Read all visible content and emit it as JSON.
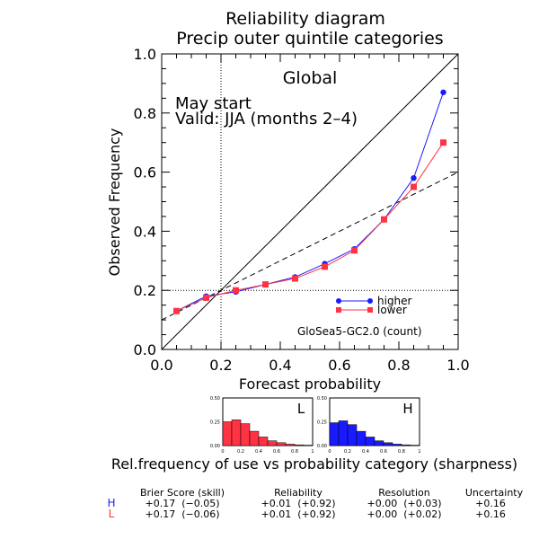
{
  "title": "Reliability diagram",
  "subtitle": "Precip outer quintile categories",
  "region": "Global",
  "start": "May start",
  "valid": "Valid: JJA (months 2–4)",
  "model": "GloSea5-GC2.0 (count)",
  "sharpness_caption": "Rel.frequency of use vs probability category (sharpness)",
  "colors": {
    "higher": "#1a1aff",
    "lower": "#ff3344"
  },
  "chart_data": [
    {
      "type": "line",
      "xlabel": "Forecast probability",
      "ylabel": "Observed Frequency",
      "xlim": [
        0,
        1
      ],
      "ylim": [
        0,
        1
      ],
      "xticks": [
        "0.0",
        "0.2",
        "0.4",
        "0.6",
        "0.8",
        "1.0"
      ],
      "yticks": [
        "0.0",
        "0.2",
        "0.4",
        "0.6",
        "0.8",
        "1.0"
      ],
      "climatology": 0.2,
      "no_skill_line": [
        [
          0,
          0.1
        ],
        [
          1,
          0.6
        ]
      ],
      "legend_position": "lower-right",
      "series": [
        {
          "name": "higher",
          "color": "#1a1aff",
          "marker": "circle",
          "x": [
            0.05,
            0.15,
            0.25,
            0.35,
            0.45,
            0.55,
            0.65,
            0.75,
            0.85,
            0.95
          ],
          "y": [
            0.13,
            0.18,
            0.195,
            0.22,
            0.245,
            0.29,
            0.34,
            0.44,
            0.58,
            0.87
          ]
        },
        {
          "name": "lower",
          "color": "#ff3344",
          "marker": "square",
          "x": [
            0.05,
            0.15,
            0.25,
            0.35,
            0.45,
            0.55,
            0.65,
            0.75,
            0.85,
            0.95
          ],
          "y": [
            0.13,
            0.175,
            0.2,
            0.22,
            0.24,
            0.28,
            0.335,
            0.44,
            0.55,
            0.7
          ]
        }
      ]
    },
    {
      "type": "bar",
      "label": "L",
      "color": "#ff3344",
      "ylim": [
        0,
        0.5
      ],
      "yticks": [
        "0.00",
        "0.25",
        "0.50"
      ],
      "xticks": [
        "0",
        "0.2",
        "0.4",
        "0.6",
        "0.8",
        "1"
      ],
      "values": [
        0.25,
        0.27,
        0.23,
        0.15,
        0.09,
        0.05,
        0.03,
        0.015,
        0.008,
        0.004
      ]
    },
    {
      "type": "bar",
      "label": "H",
      "color": "#1a1aff",
      "ylim": [
        0,
        0.5
      ],
      "yticks": [
        "0.00",
        "0.25",
        "0.50"
      ],
      "xticks": [
        "0",
        "0.2",
        "0.4",
        "0.6",
        "0.8",
        "1"
      ],
      "values": [
        0.24,
        0.26,
        0.22,
        0.15,
        0.09,
        0.05,
        0.03,
        0.015,
        0.008,
        0.004
      ]
    }
  ],
  "scores": {
    "headers": [
      "Brier Score (skill)",
      "Reliability",
      "Resolution",
      "Uncertainty"
    ],
    "rows": [
      {
        "label": "H",
        "color": "#1a1aff",
        "cells": [
          "+0.17  (−0.05)",
          "+0.01  (+0.92)",
          "+0.00  (+0.03)",
          "+0.16"
        ]
      },
      {
        "label": "L",
        "color": "#ff3344",
        "cells": [
          "+0.17  (−0.06)",
          "+0.01  (+0.92)",
          "+0.00  (+0.02)",
          "+0.16"
        ]
      }
    ]
  }
}
